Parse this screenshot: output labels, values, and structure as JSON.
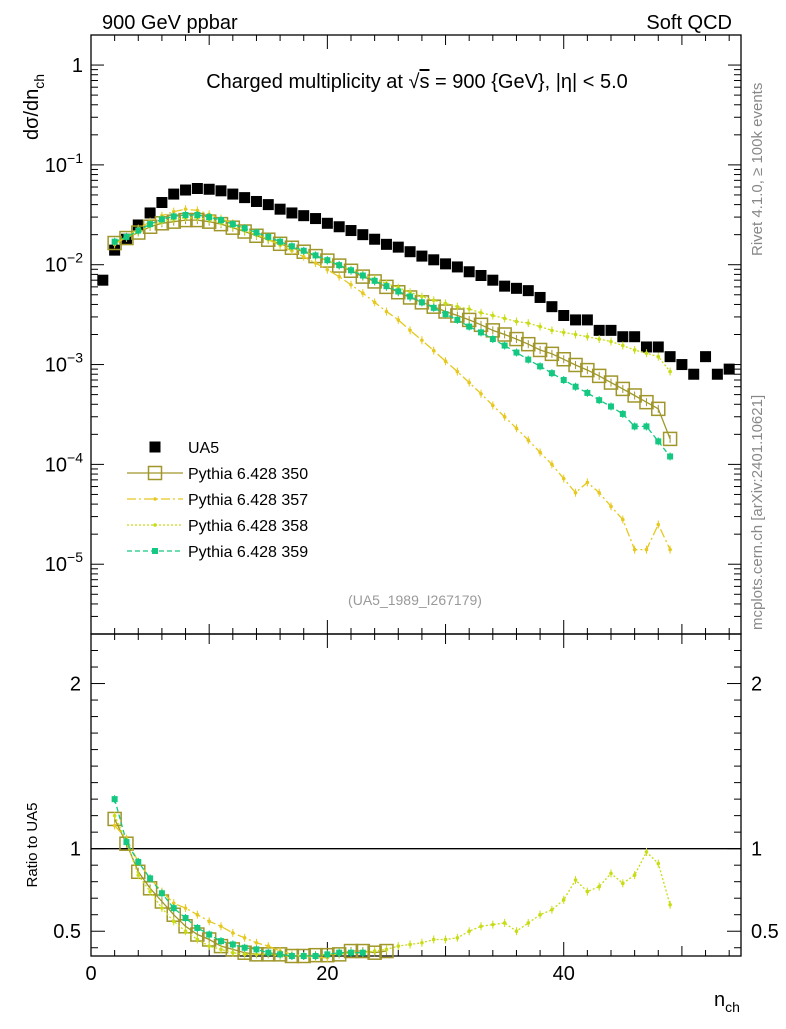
{
  "header": {
    "left": "900 GeV ppbar",
    "right": "Soft QCD"
  },
  "side_labels": {
    "rivet": "Rivet 4.1.0, ≥ 100k events",
    "mcplots": "mcplots.cern.ch [arXiv:2401.10621]"
  },
  "colors": {
    "ua5": "#000000",
    "p350": "#a0962a",
    "p357": "#e6c81e",
    "p358": "#c8dc14",
    "p359": "#14c882"
  },
  "chart_data": [
    {
      "type": "scatter",
      "title_parts": {
        "pre": "Charged multiplicity at ",
        "sqrt": "√",
        "s": "s",
        "post": " = 900 {GeV}, |η| < 5.0"
      },
      "ylabel": {
        "main": "dσ/dn",
        "sub": "ch"
      },
      "yscale": "log",
      "xlim": [
        0,
        55
      ],
      "ylim": [
        2e-06,
        2.0
      ],
      "x_ticks": [
        0,
        20,
        40
      ],
      "y_ticks": [
        {
          "value": 1,
          "base": "1",
          "exp": ""
        },
        {
          "value": 0.1,
          "base": "10",
          "exp": "−1"
        },
        {
          "value": 0.01,
          "base": "10",
          "exp": "−2"
        },
        {
          "value": 0.001,
          "base": "10",
          "exp": "−3"
        },
        {
          "value": 0.0001,
          "base": "10",
          "exp": "−4"
        },
        {
          "value": 1e-05,
          "base": "10",
          "exp": "−5"
        }
      ],
      "watermark": "(UA5_1989_I267179)",
      "legend_position": "left",
      "series": [
        {
          "name": "UA5",
          "color_key": "ua5",
          "marker": "filled-square",
          "x": [
            1,
            2,
            3,
            4,
            5,
            6,
            7,
            8,
            9,
            10,
            11,
            12,
            13,
            14,
            15,
            16,
            17,
            18,
            19,
            20,
            21,
            22,
            23,
            24,
            25,
            26,
            27,
            28,
            29,
            30,
            31,
            32,
            33,
            34,
            35,
            36,
            37,
            38,
            39,
            40,
            41,
            42,
            43,
            44,
            45,
            46,
            47,
            48,
            49,
            50,
            51,
            52,
            53,
            54
          ],
          "y": [
            0.007,
            0.014,
            0.018,
            0.025,
            0.033,
            0.042,
            0.051,
            0.056,
            0.058,
            0.057,
            0.055,
            0.051,
            0.047,
            0.043,
            0.04,
            0.036,
            0.033,
            0.031,
            0.029,
            0.026,
            0.024,
            0.022,
            0.02,
            0.018,
            0.016,
            0.015,
            0.0135,
            0.0122,
            0.0112,
            0.0102,
            0.0095,
            0.0085,
            0.0078,
            0.007,
            0.0061,
            0.0058,
            0.0055,
            0.0047,
            0.0038,
            0.0031,
            0.0028,
            0.0028,
            0.0022,
            0.0022,
            0.0019,
            0.0019,
            0.0015,
            0.0015,
            0.0012,
            0.001,
            0.0008,
            0.0012,
            0.0008,
            0.0009
          ]
        },
        {
          "name": "Pythia 6.428 350",
          "color_key": "p350",
          "marker": "open-square",
          "dash": "",
          "x": [
            2,
            3,
            4,
            5,
            6,
            7,
            8,
            9,
            10,
            11,
            12,
            13,
            14,
            15,
            16,
            17,
            18,
            19,
            20,
            21,
            22,
            23,
            24,
            25,
            26,
            27,
            28,
            29,
            30,
            31,
            32,
            33,
            34,
            35,
            36,
            37,
            38,
            39,
            40,
            41,
            42,
            43,
            44,
            45,
            46,
            47,
            48,
            49
          ],
          "y": [
            0.0165,
            0.0185,
            0.021,
            0.024,
            0.026,
            0.027,
            0.028,
            0.028,
            0.027,
            0.0255,
            0.0235,
            0.0215,
            0.0195,
            0.0178,
            0.0162,
            0.0148,
            0.0135,
            0.0122,
            0.011,
            0.0098,
            0.0087,
            0.0076,
            0.0068,
            0.006,
            0.0053,
            0.0047,
            0.0042,
            0.0038,
            0.0034,
            0.0031,
            0.0028,
            0.0025,
            0.0022,
            0.002,
            0.0018,
            0.0016,
            0.0014,
            0.00128,
            0.00113,
            0.00099,
            0.00088,
            0.00077,
            0.00066,
            0.00057,
            0.00049,
            0.00042,
            0.00036,
            0.00018
          ]
        },
        {
          "name": "Pythia 6.428 357",
          "color_key": "p357",
          "marker": "small-dot",
          "dash": "9 3 2 3",
          "x": [
            2,
            3,
            4,
            5,
            6,
            7,
            8,
            9,
            10,
            11,
            12,
            13,
            14,
            15,
            16,
            17,
            18,
            19,
            20,
            21,
            22,
            23,
            24,
            25,
            26,
            27,
            28,
            29,
            30,
            31,
            32,
            33,
            34,
            35,
            36,
            37,
            38,
            39,
            40,
            41,
            42,
            43,
            44,
            45,
            46,
            47,
            48,
            49
          ],
          "y": [
            0.016,
            0.019,
            0.023,
            0.027,
            0.031,
            0.034,
            0.036,
            0.035,
            0.032,
            0.029,
            0.026,
            0.023,
            0.0202,
            0.0178,
            0.0157,
            0.0138,
            0.012,
            0.0104,
            0.0089,
            0.0076,
            0.0063,
            0.0052,
            0.0042,
            0.0034,
            0.0028,
            0.0022,
            0.00175,
            0.00138,
            0.00108,
            0.00085,
            0.00066,
            0.00051,
            0.00039,
            0.0003,
            0.00023,
            0.000175,
            0.000132,
            0.0001,
            7.2e-05,
            5.2e-05,
            6.6e-05,
            5.2e-05,
            3.8e-05,
            2.8e-05,
            1.4e-05,
            1.4e-05,
            2.5e-05,
            1.4e-05
          ]
        },
        {
          "name": "Pythia 6.428 358",
          "color_key": "p358",
          "marker": "small-dot",
          "dash": "2 2",
          "x": [
            2,
            3,
            4,
            5,
            6,
            7,
            8,
            9,
            10,
            11,
            12,
            13,
            14,
            15,
            16,
            17,
            18,
            19,
            20,
            21,
            22,
            23,
            24,
            25,
            26,
            27,
            28,
            29,
            30,
            31,
            32,
            33,
            34,
            35,
            36,
            37,
            38,
            39,
            40,
            41,
            42,
            43,
            44,
            45,
            46,
            47,
            48,
            49
          ],
          "y": [
            0.0168,
            0.0188,
            0.0212,
            0.0245,
            0.0268,
            0.0285,
            0.0295,
            0.0295,
            0.0283,
            0.0262,
            0.024,
            0.0218,
            0.0198,
            0.018,
            0.0162,
            0.0148,
            0.0135,
            0.0122,
            0.011,
            0.0099,
            0.0089,
            0.008,
            0.0072,
            0.0065,
            0.0059,
            0.0053,
            0.0048,
            0.0044,
            0.0041,
            0.0038,
            0.0036,
            0.0033,
            0.0031,
            0.0029,
            0.0027,
            0.0026,
            0.0024,
            0.0022,
            0.0021,
            0.002,
            0.0019,
            0.0018,
            0.0017,
            0.00155,
            0.0014,
            0.0013,
            0.0012,
            0.00085
          ]
        },
        {
          "name": "Pythia 6.428 359",
          "color_key": "p359",
          "marker": "filled-small-square",
          "dash": "5 3",
          "x": [
            2,
            3,
            4,
            5,
            6,
            7,
            8,
            9,
            10,
            11,
            12,
            13,
            14,
            15,
            16,
            17,
            18,
            19,
            20,
            21,
            22,
            23,
            24,
            25,
            26,
            27,
            28,
            29,
            30,
            31,
            32,
            33,
            34,
            35,
            36,
            37,
            38,
            39,
            40,
            41,
            42,
            43,
            44,
            45,
            46,
            47,
            48,
            49
          ],
          "y": [
            0.017,
            0.019,
            0.022,
            0.0255,
            0.0285,
            0.0305,
            0.0315,
            0.0315,
            0.03,
            0.028,
            0.0255,
            0.0232,
            0.021,
            0.019,
            0.017,
            0.0153,
            0.0138,
            0.0124,
            0.0111,
            0.0099,
            0.0088,
            0.0078,
            0.0069,
            0.0061,
            0.0054,
            0.0048,
            0.0042,
            0.0037,
            0.0032,
            0.0028,
            0.0024,
            0.0021,
            0.0018,
            0.00155,
            0.00132,
            0.00112,
            0.00096,
            0.00082,
            0.0007,
            0.0006,
            0.00052,
            0.00044,
            0.00038,
            0.00032,
            0.00024,
            0.00024,
            0.00017,
            0.00012
          ]
        }
      ]
    },
    {
      "type": "line",
      "ylabel": "Ratio to UA5",
      "xlabel": {
        "main": "n",
        "sub": "ch"
      },
      "xlim": [
        0,
        55
      ],
      "ylim": [
        0.35,
        2.3
      ],
      "x_ticks": [
        0,
        20,
        40
      ],
      "y_ticks": [
        0.5,
        1,
        2
      ],
      "y_tick_labels": [
        "0.5",
        "1",
        "2"
      ],
      "reference_line": 1,
      "series": [
        {
          "name": "Pythia 6.428 350",
          "color_key": "p350",
          "marker": "open-square",
          "dash": "",
          "x": [
            2,
            3,
            4,
            5,
            6,
            7,
            8,
            9,
            10,
            11,
            12,
            13,
            14,
            15,
            16,
            17,
            18,
            19,
            20,
            21,
            22,
            23,
            24,
            25
          ],
          "y": [
            1.18,
            1.03,
            0.86,
            0.76,
            0.68,
            0.6,
            0.53,
            0.48,
            0.45,
            0.41,
            0.39,
            0.37,
            0.36,
            0.36,
            0.36,
            0.35,
            0.35,
            0.355,
            0.355,
            0.36,
            0.38,
            0.38,
            0.37,
            0.38
          ]
        },
        {
          "name": "Pythia 6.428 357",
          "color_key": "p357",
          "marker": "small-dot",
          "dash": "9 3 2 3",
          "x": [
            2,
            3,
            4,
            5,
            6,
            7,
            8,
            9,
            10,
            11,
            12,
            13,
            14,
            15,
            16,
            17,
            18,
            19,
            20
          ],
          "y": [
            1.14,
            1.06,
            0.92,
            0.82,
            0.74,
            0.67,
            0.64,
            0.6,
            0.56,
            0.53,
            0.49,
            0.46,
            0.43,
            0.41,
            0.38,
            0.36,
            0.35,
            0.34,
            0.34
          ]
        },
        {
          "name": "Pythia 6.428 358",
          "color_key": "p358",
          "marker": "small-dot",
          "dash": "2 2",
          "x": [
            2,
            3,
            4,
            5,
            6,
            7,
            8,
            9,
            10,
            11,
            12,
            13,
            14,
            15,
            16,
            17,
            18,
            19,
            20,
            21,
            22,
            23,
            24,
            25,
            26,
            27,
            28,
            29,
            30,
            31,
            32,
            33,
            34,
            35,
            36,
            37,
            38,
            39,
            40,
            41,
            42,
            43,
            44,
            45,
            46,
            47,
            48,
            49
          ],
          "y": [
            1.2,
            1.04,
            0.84,
            0.74,
            0.64,
            0.56,
            0.5,
            0.45,
            0.41,
            0.39,
            0.37,
            0.36,
            0.36,
            0.36,
            0.35,
            0.35,
            0.35,
            0.35,
            0.36,
            0.36,
            0.37,
            0.37,
            0.38,
            0.39,
            0.41,
            0.42,
            0.43,
            0.45,
            0.45,
            0.46,
            0.5,
            0.53,
            0.54,
            0.55,
            0.5,
            0.55,
            0.6,
            0.63,
            0.69,
            0.81,
            0.74,
            0.77,
            0.85,
            0.79,
            0.84,
            0.98,
            0.91,
            0.66
          ]
        },
        {
          "name": "Pythia 6.428 359",
          "color_key": "p359",
          "marker": "filled-small-square",
          "dash": "5 3",
          "x": [
            2,
            3,
            4,
            5,
            6,
            7,
            8,
            9,
            10,
            11,
            12,
            13,
            14,
            15,
            16,
            17,
            18,
            19,
            20,
            21,
            22,
            23
          ],
          "y": [
            1.3,
            1.04,
            0.92,
            0.82,
            0.73,
            0.64,
            0.58,
            0.52,
            0.48,
            0.44,
            0.42,
            0.4,
            0.39,
            0.37,
            0.36,
            0.35,
            0.35,
            0.35,
            0.36,
            0.37,
            0.37,
            0.37
          ]
        }
      ]
    }
  ]
}
